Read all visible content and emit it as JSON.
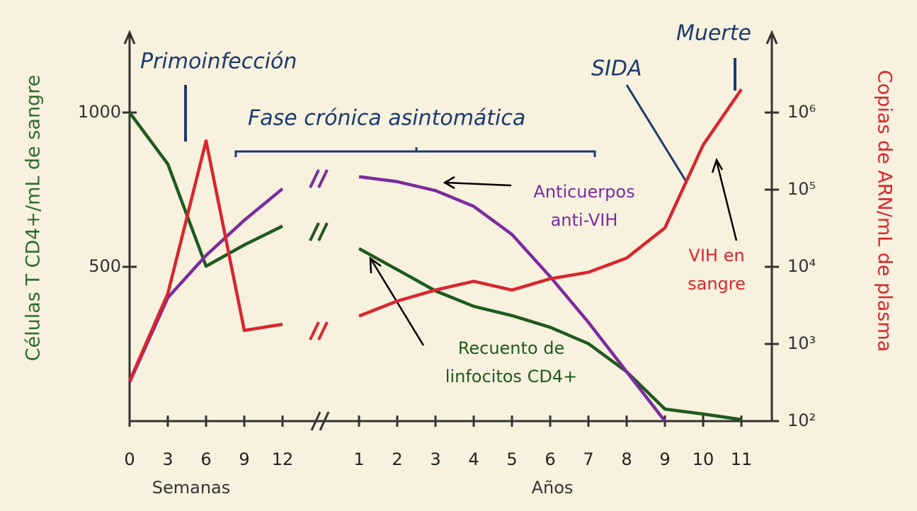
{
  "chart_data": {
    "type": "line",
    "y_label": "Células T CD4+/mL de sangre",
    "y2_label": "Copias de ARN/mL de plasma",
    "x_labels": [
      "Semanas",
      "Años"
    ],
    "categories": [
      "0",
      "3",
      "6",
      "9",
      "12",
      null,
      "1",
      "2",
      "3",
      "4",
      "5",
      "6",
      "7",
      "8",
      "9",
      "10",
      "11"
    ],
    "ylim": [
      0,
      1250
    ],
    "yticks": [
      500,
      1000
    ],
    "y2lim": [
      100,
      10000000
    ],
    "y2log": true,
    "y2ticks": [
      {
        "value": 100,
        "label": "10²"
      },
      {
        "value": 1000,
        "label": "10³"
      },
      {
        "value": 10000,
        "label": "10⁴"
      },
      {
        "value": 100000,
        "label": "10⁵"
      },
      {
        "value": 1000000,
        "label": "10⁶"
      }
    ],
    "series": [
      {
        "color": "#1f5a1f",
        "values": [
          1000,
          833,
          502,
          571,
          632,
          null,
          559,
          491,
          422,
          372,
          342,
          304,
          251,
          160,
          39,
          23,
          5
        ]
      },
      {
        "color": "#7b2c9e",
        "values": [
          126,
          400,
          537,
          651,
          753,
          null,
          792,
          776,
          747,
          696,
          605,
          468,
          320,
          160,
          0,
          null,
          null
        ]
      },
      {
        "color": "#d7262e",
        "axis": "y2",
        "values": [
          330,
          4500,
          430000,
          1500,
          1800,
          null,
          2300,
          3600,
          5000,
          6500,
          5000,
          7000,
          8500,
          13000,
          32000,
          380000,
          2000000
        ]
      }
    ],
    "annotations": [
      {
        "lines": [
          "Primoinfección"
        ],
        "color": "#1c3a6e",
        "italic": true
      },
      {
        "lines": [
          "Fase crónica asintomática"
        ],
        "color": "#1c3a6e",
        "italic": true
      },
      {
        "lines": [
          "SIDA"
        ],
        "color": "#1c3a6e",
        "italic": true
      },
      {
        "lines": [
          "Muerte"
        ],
        "color": "#1c3a6e",
        "italic": true
      },
      {
        "lines": [
          "Anticuerpos",
          "anti-VIH"
        ],
        "color": "#7b2c9e",
        "italic": false
      },
      {
        "lines": [
          "VIH en",
          "sangre"
        ],
        "color": "#d7262e",
        "italic": false
      },
      {
        "lines": [
          "Recuento de",
          "linfocitos CD4+"
        ],
        "color": "#1f5a1f",
        "italic": false
      }
    ]
  }
}
